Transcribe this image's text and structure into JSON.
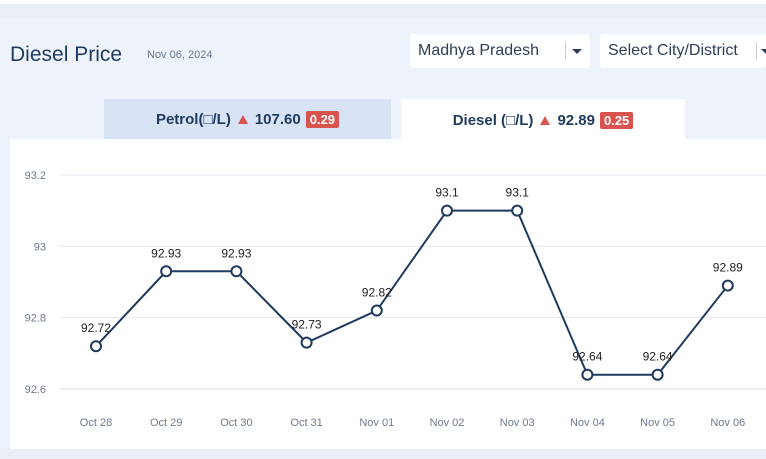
{
  "header": {
    "title": "Diesel Price",
    "date": "Nov 06, 2024"
  },
  "filters": {
    "state": "Madhya Pradesh",
    "city_placeholder": "Select City/District"
  },
  "tabs": [
    {
      "label": "Petrol(□/L)",
      "price": "107.60",
      "change": "0.29",
      "trend": "up",
      "active": false
    },
    {
      "label": "Diesel (□/L)",
      "price": "92.89",
      "change": "0.25",
      "trend": "up",
      "active": true
    }
  ],
  "colors": {
    "line": "#1f3a5f",
    "badge": "#d9534f",
    "active_tab": "#ffffff",
    "inactive_tab": "#d8e3f6"
  },
  "chart_data": {
    "type": "line",
    "categories": [
      "Oct 28",
      "Oct 29",
      "Oct 30",
      "Oct 31",
      "Nov 01",
      "Nov 02",
      "Nov 03",
      "Nov 04",
      "Nov 05",
      "Nov 06"
    ],
    "series": [
      {
        "values": [
          92.72,
          92.93,
          92.93,
          92.73,
          92.82,
          93.1,
          93.1,
          92.64,
          92.64,
          92.89
        ]
      }
    ],
    "data_labels": [
      "92.72",
      "92.93",
      "92.93",
      "92.73",
      "92.82",
      "93.1",
      "93.1",
      "92.64",
      "92.64",
      "92.89"
    ],
    "y_ticks": [
      "92.6",
      "92.8",
      "93",
      "93.2"
    ],
    "ylim": [
      92.6,
      93.2
    ],
    "grid": true
  }
}
